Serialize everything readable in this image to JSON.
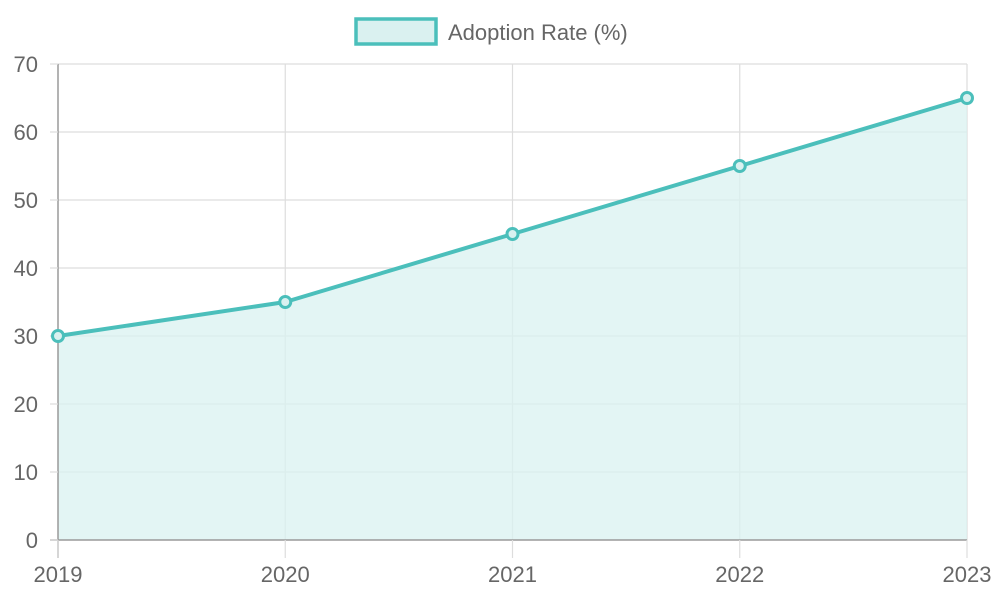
{
  "chart_data": {
    "type": "area",
    "categories": [
      "2019",
      "2020",
      "2021",
      "2022",
      "2023"
    ],
    "series": [
      {
        "name": "Adoption Rate (%)",
        "values": [
          30,
          35,
          45,
          55,
          65
        ],
        "stroke_color": "#4bbfbb",
        "fill_color": "#daf1f0"
      }
    ],
    "ylim": [
      0,
      70
    ],
    "yticks": [
      "0",
      "10",
      "20",
      "30",
      "40",
      "50",
      "60",
      "70"
    ],
    "grid": true,
    "legend_position": "top-center"
  }
}
